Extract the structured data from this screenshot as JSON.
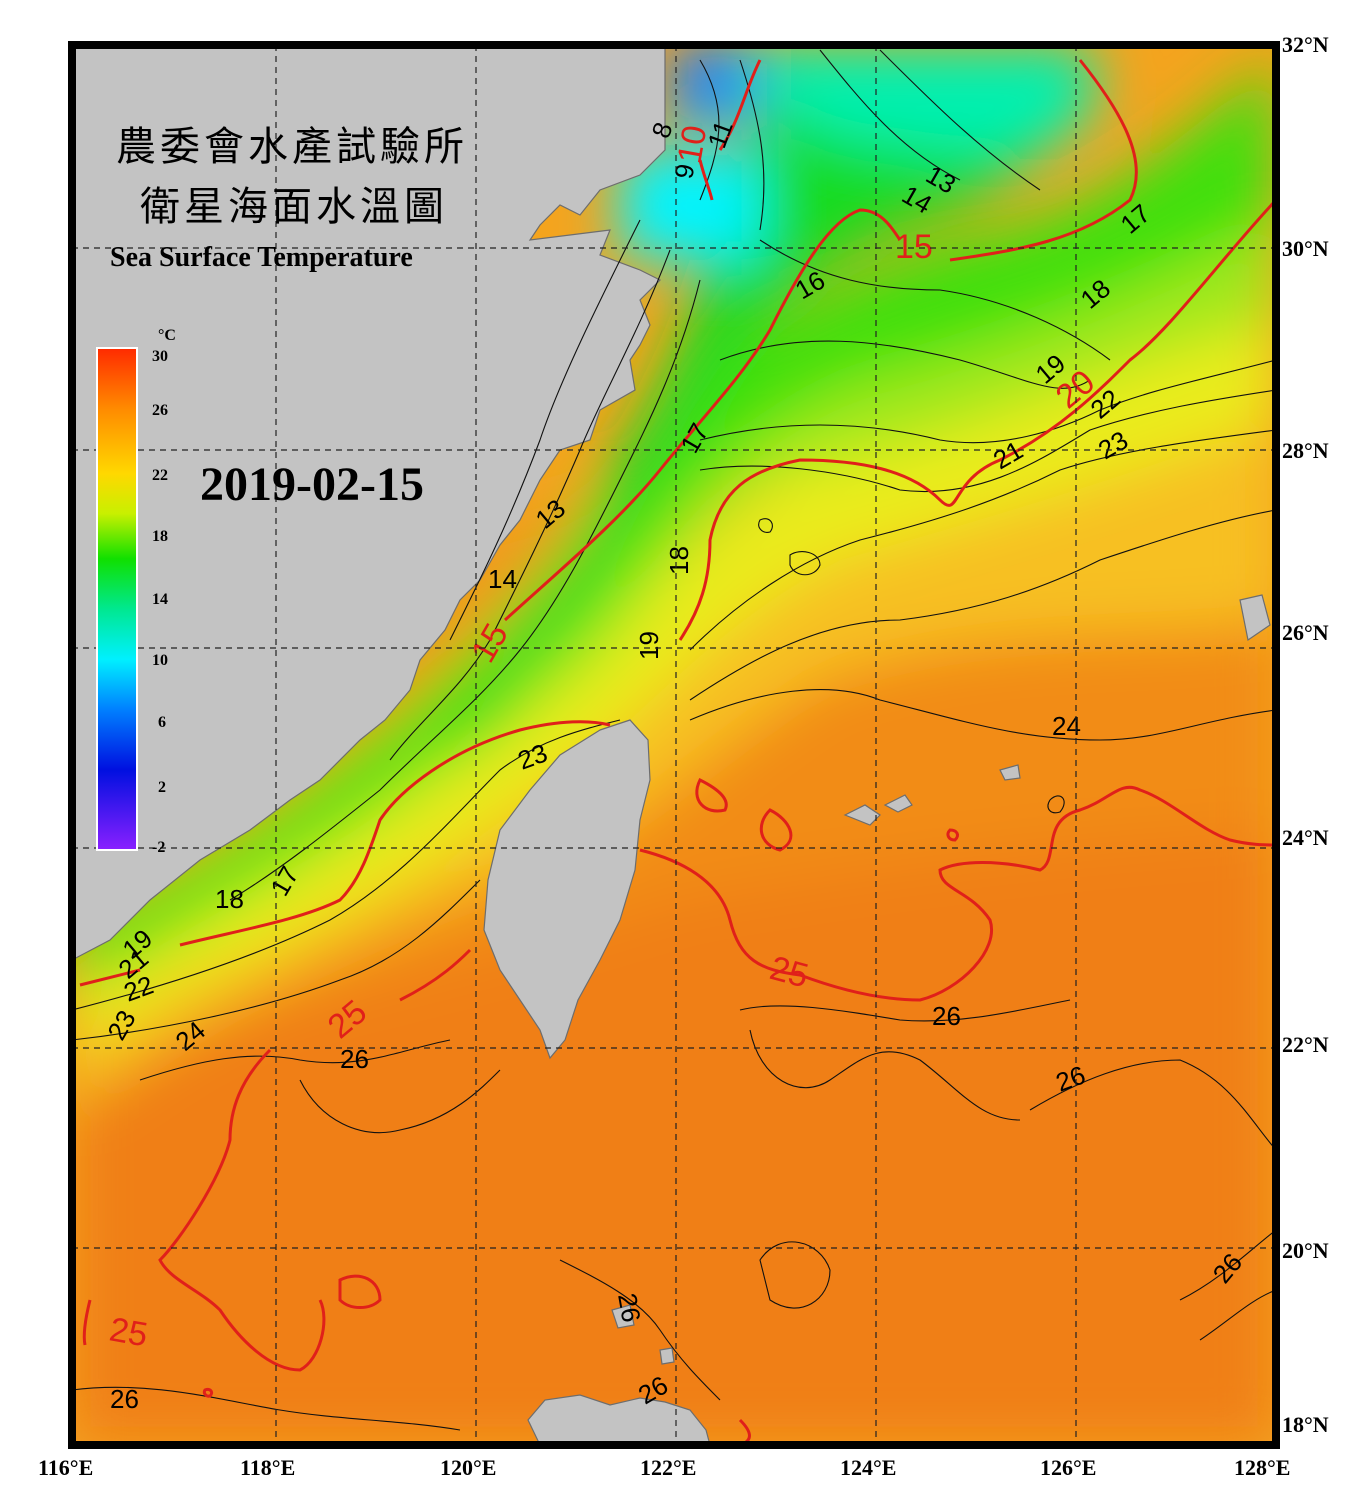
{
  "title": {
    "line1": "農委會水產試驗所",
    "line2": "衛星海面水溫圖",
    "english": "Sea Surface Temperature"
  },
  "date": "2019-02-15",
  "colorbar": {
    "unit": "°C",
    "ticks": [
      "30",
      "26",
      "22",
      "18",
      "14",
      "10",
      "6",
      "2",
      "-2"
    ]
  },
  "axes": {
    "lon_labels": [
      "116°E",
      "118°E",
      "120°E",
      "122°E",
      "124°E",
      "126°E",
      "128°E"
    ],
    "lat_labels": [
      "32°N",
      "30°N",
      "28°N",
      "26°N",
      "24°N",
      "22°N",
      "20°N",
      "18°N"
    ]
  },
  "contour_labels": {
    "black": [
      "8",
      "9",
      "11",
      "13",
      "14",
      "16",
      "17",
      "18",
      "19",
      "21",
      "22",
      "23",
      "13",
      "14",
      "17",
      "18",
      "19",
      "23",
      "24",
      "24",
      "26",
      "26",
      "26",
      "26",
      "26",
      "26",
      "26",
      "18",
      "17",
      "19",
      "21",
      "22",
      "23"
    ],
    "red": [
      "10",
      "15",
      "20",
      "15",
      "25",
      "25",
      "25"
    ]
  },
  "colors": {
    "land": "#c3c3c3",
    "isotherm_major": "#e0201a",
    "isotherm_minor": "#111111"
  }
}
